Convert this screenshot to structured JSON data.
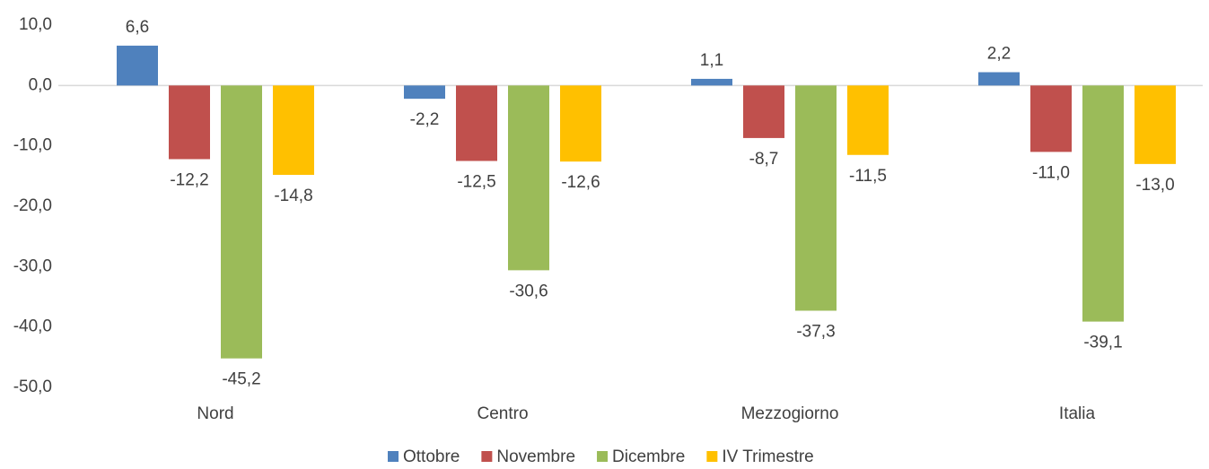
{
  "chart_data": {
    "type": "bar",
    "categories": [
      "Nord",
      "Centro",
      "Mezzogiorno",
      "Italia"
    ],
    "series": [
      {
        "name": "Ottobre",
        "color": "#4f81bd",
        "values": [
          6.6,
          -2.2,
          1.1,
          2.2
        ],
        "value_labels": [
          "6,6",
          "-2,2",
          "1,1",
          "2,2"
        ]
      },
      {
        "name": "Novembre",
        "color": "#c0504d",
        "values": [
          -12.2,
          -12.5,
          -8.7,
          -11.0
        ],
        "value_labels": [
          "-12,2",
          "-12,5",
          "-8,7",
          "-11,0"
        ]
      },
      {
        "name": "Dicembre",
        "color": "#9bbb59",
        "values": [
          -45.2,
          -30.6,
          -37.3,
          -39.1
        ],
        "value_labels": [
          "-45,2",
          "-30,6",
          "-37,3",
          "-39,1"
        ]
      },
      {
        "name": "IV Trimestre",
        "color": "#ffc000",
        "values": [
          -14.8,
          -12.6,
          -11.5,
          -13.0
        ],
        "value_labels": [
          "-14,8",
          "-12,6",
          "-11,5",
          "-13,0"
        ]
      }
    ],
    "ylim": [
      -50,
      10
    ],
    "yticks": [
      {
        "value": 10,
        "label": "10,0"
      },
      {
        "value": 0,
        "label": "0,0"
      },
      {
        "value": -10,
        "label": "-10,0"
      },
      {
        "value": -20,
        "label": "-20,0"
      },
      {
        "value": -30,
        "label": "-30,0"
      },
      {
        "value": -40,
        "label": "-40,0"
      },
      {
        "value": -50,
        "label": "-50,0"
      }
    ],
    "grid": false,
    "legend": "bottom"
  }
}
